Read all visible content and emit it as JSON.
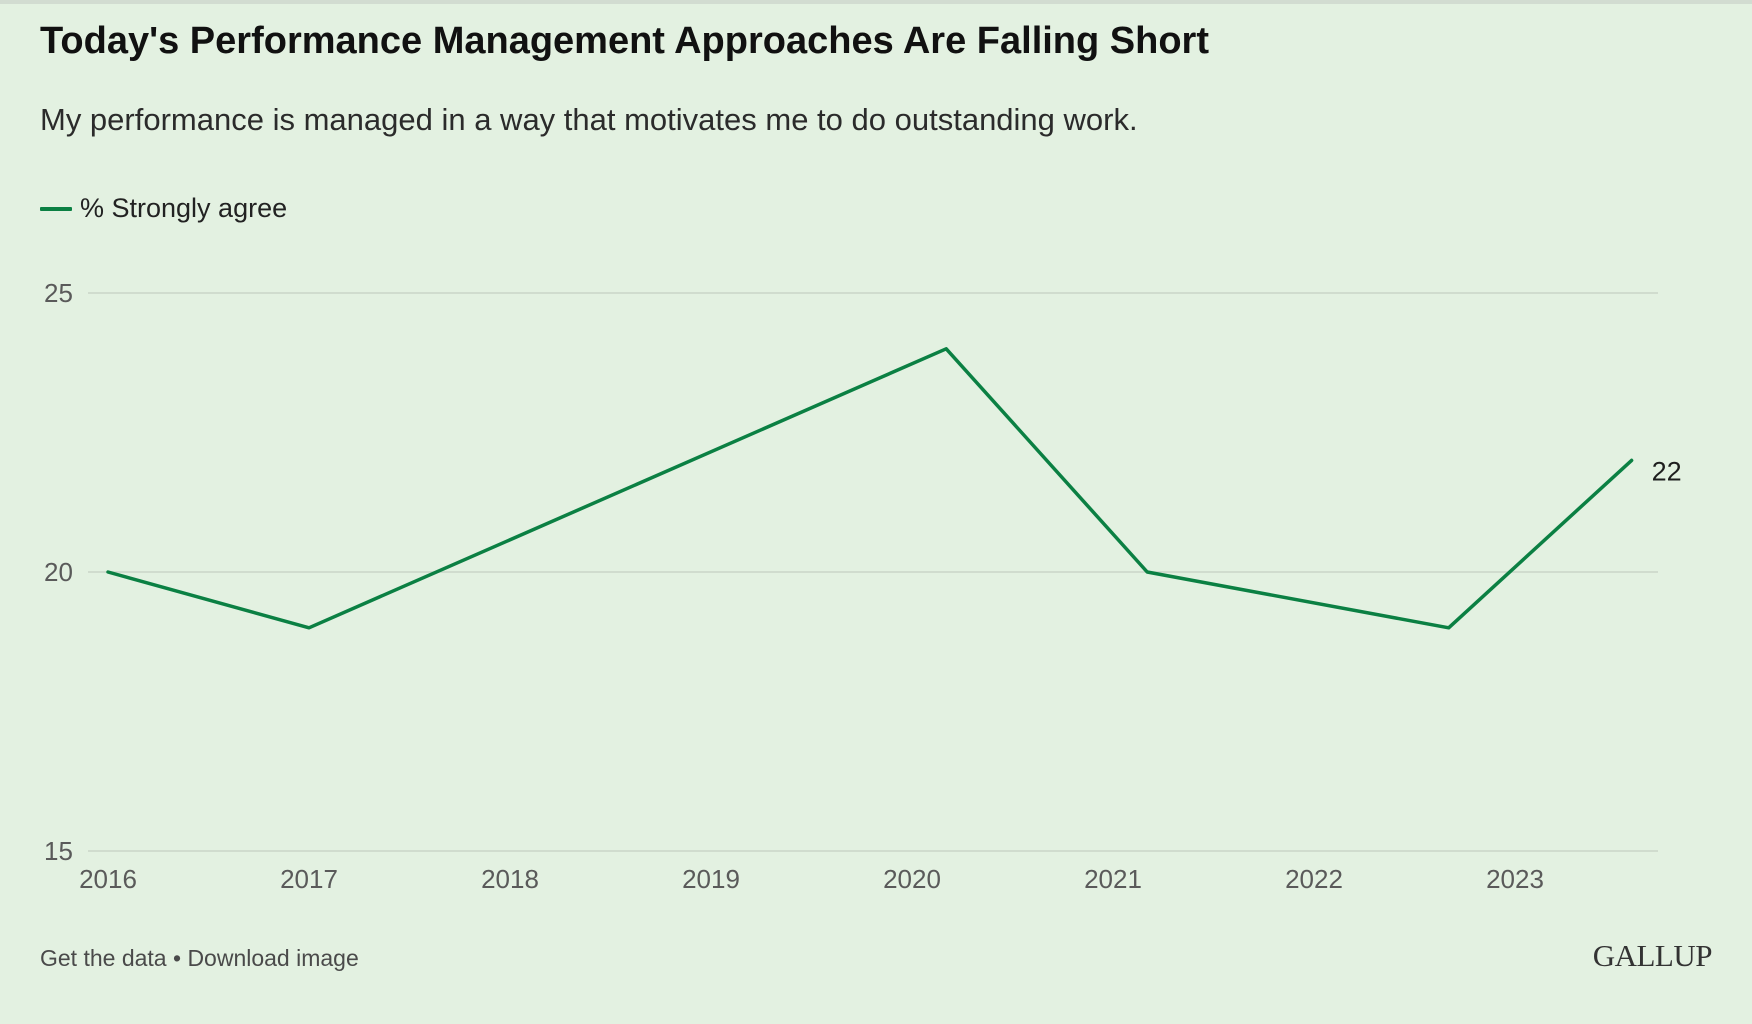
{
  "title": "Today's Performance Management Approaches Are Falling Short",
  "subtitle": "My performance is managed in a way that motivates me to do outstanding work.",
  "footer": {
    "get_data": "Get the data",
    "separator": "•",
    "download": "Download image"
  },
  "brand": "GALLUP",
  "colors": {
    "background": "#e3f1e1",
    "series": "#0b8043",
    "grid": "#c9d6c8"
  },
  "chart_data": {
    "type": "line",
    "title": "Today's Performance Management Approaches Are Falling Short",
    "subtitle": "My performance is managed in a way that motivates me to do outstanding work.",
    "xlabel": "",
    "ylabel": "",
    "ylim": [
      15,
      25
    ],
    "yticks": [
      "15",
      "20",
      "25"
    ],
    "xticks": [
      "2016",
      "2017",
      "2018",
      "2019",
      "2020",
      "2021",
      "2022",
      "2023"
    ],
    "xlim": [
      2016,
      2024
    ],
    "grid": true,
    "legend_position": "top-left",
    "series": [
      {
        "name": "% Strongly agree",
        "x": [
          2016,
          2017,
          2020.17,
          2021.17,
          2022.67,
          2023.58
        ],
        "values": [
          20,
          19,
          24,
          20,
          19,
          22
        ],
        "end_label": "22"
      }
    ]
  }
}
